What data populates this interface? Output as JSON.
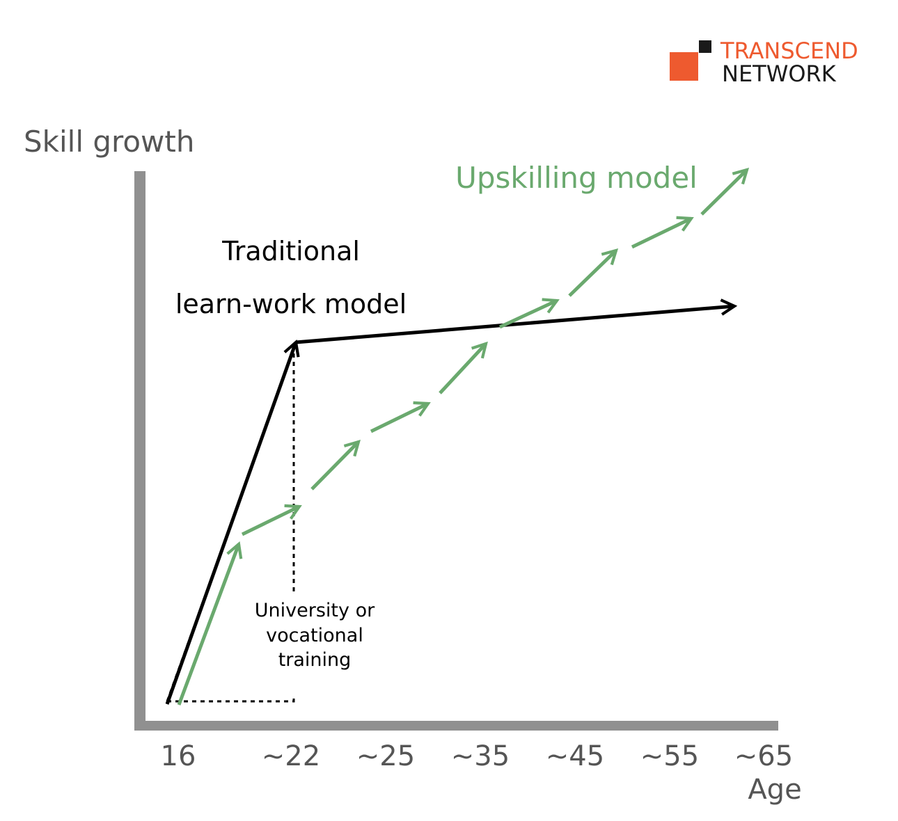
{
  "logo": {
    "line1": "TRANSCEND",
    "line2": "NETWORK"
  },
  "y_axis_label": "Skill growth",
  "x_labels": [
    "16",
    "~22",
    "~25",
    "~35",
    "~45",
    "~55",
    "~65"
  ],
  "x_axis_label": "Age",
  "traditional_label": [
    "Traditional",
    "learn-work model"
  ],
  "upskilling_label": "Upskilling model",
  "annotation": [
    "University or",
    "vocational",
    "training"
  ]
}
